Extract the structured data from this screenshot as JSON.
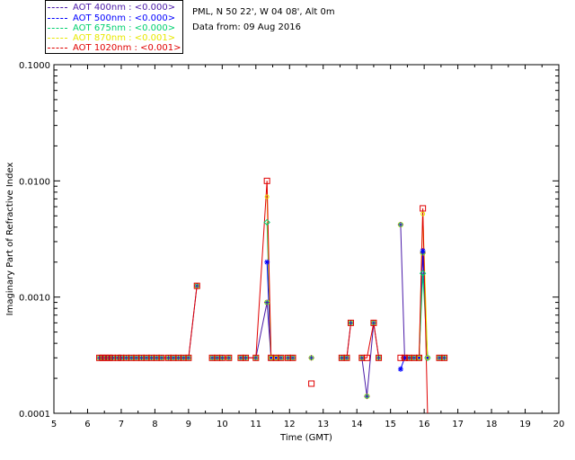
{
  "legend": [
    {
      "label": "AOT  400nm : <0.000>",
      "color": "#4a1aa8"
    },
    {
      "label": "AOT  500nm : <0.000>",
      "color": "#0000ff"
    },
    {
      "label": "AOT  675nm : <0.000>",
      "color": "#00d070"
    },
    {
      "label": "AOT  870nm : <0.001>",
      "color": "#e8e800"
    },
    {
      "label": "AOT 1020nm : <0.001>",
      "color": "#e00000"
    }
  ],
  "site_line": "PML, N 50 22', W 04 08', Alt 0m",
  "date_line": "Data from: 09 Aug 2016",
  "chart_data": {
    "type": "line",
    "ylabel": "Imaginary Part of Refractive Index",
    "xlabel": "Time (GMT)",
    "xlim": [
      5,
      20
    ],
    "ylim": [
      0.0001,
      0.1
    ],
    "yscale": "log",
    "xticks": [
      "5",
      "6",
      "7",
      "8",
      "9",
      "10",
      "11",
      "12",
      "13",
      "14",
      "15",
      "16",
      "17",
      "18",
      "19",
      "20"
    ],
    "yticks": [
      {
        "value": 0.0001,
        "label": "0.0001"
      },
      {
        "value": 0.001,
        "label": "0.0010"
      },
      {
        "value": 0.01,
        "label": "0.0100"
      },
      {
        "value": 0.1,
        "label": "0.1000"
      }
    ],
    "grid": false,
    "marker_colors": {
      "square": "#e00000",
      "cross": "#4a1aa8",
      "asterisk": "#0000ff",
      "diamond": "#00d070",
      "x": "#00d070",
      "circle": "#e8e800"
    },
    "series": [
      {
        "name": "AOT  400nm",
        "color": "#4a1aa8",
        "x": [
          6.35,
          6.45,
          6.55,
          6.65,
          6.75,
          6.9,
          7.0,
          7.15,
          7.3,
          7.45,
          7.6,
          7.75,
          7.9,
          8.05,
          8.2,
          8.4,
          8.55,
          8.7,
          8.85,
          9.0,
          9.25,
          null,
          9.7,
          9.85,
          10.0,
          10.2,
          null,
          10.55,
          10.7,
          11.0,
          11.33,
          11.45,
          11.6,
          11.75,
          null,
          11.95,
          12.1,
          null,
          12.65,
          null,
          13.55,
          13.7,
          13.82,
          null,
          14.15,
          14.3,
          14.5,
          14.65,
          null,
          15.3,
          15.42,
          15.55,
          15.7,
          15.85,
          15.96,
          16.1,
          null,
          16.45,
          16.6
        ],
        "y": [
          0.0003,
          0.0003,
          0.0003,
          0.0003,
          0.0003,
          0.0003,
          0.0003,
          0.0003,
          0.0003,
          0.0003,
          0.0003,
          0.0003,
          0.0003,
          0.0003,
          0.0003,
          0.0003,
          0.0003,
          0.0003,
          0.0003,
          0.0003,
          0.00125,
          null,
          0.0003,
          0.0003,
          0.0003,
          0.0003,
          null,
          0.0003,
          0.0003,
          0.0003,
          0.0009,
          0.0003,
          0.0003,
          0.0003,
          null,
          0.0003,
          0.0003,
          null,
          0.0003,
          null,
          0.0003,
          0.0003,
          0.0006,
          null,
          0.0003,
          0.00014,
          0.0006,
          0.0003,
          null,
          0.0042,
          0.0003,
          0.0003,
          0.0003,
          0.0003,
          0.0024,
          0.0003,
          null,
          0.0003,
          0.0003
        ]
      },
      {
        "name": "AOT  500nm",
        "color": "#0000ff",
        "x": [
          11.33,
          11.45,
          11.6,
          null,
          15.3,
          15.42,
          15.85,
          15.96,
          16.1
        ],
        "y": [
          0.002,
          0.0003,
          0.0003,
          null,
          0.00024,
          0.0003,
          0.0003,
          0.0025,
          0.0003
        ]
      },
      {
        "name": "AOT  675nm",
        "color": "#00d070",
        "x": [
          11.33,
          11.45,
          11.6,
          null,
          15.85,
          15.96,
          16.1
        ],
        "y": [
          0.0044,
          0.0003,
          0.0003,
          null,
          0.0003,
          0.0016,
          0.0003
        ]
      },
      {
        "name": "AOT  870nm",
        "color": "#e8e800",
        "x": [
          11.33,
          11.45,
          11.6,
          null,
          15.85,
          15.96,
          16.1
        ],
        "y": [
          0.0073,
          0.0003,
          0.0003,
          null,
          0.0003,
          0.0052,
          0.0003
        ]
      },
      {
        "name": "AOT 1020nm",
        "color": "#e00000",
        "x": [
          6.35,
          6.45,
          6.55,
          6.65,
          6.75,
          6.9,
          7.0,
          7.15,
          7.3,
          7.45,
          7.6,
          7.75,
          7.9,
          8.05,
          8.2,
          8.4,
          8.55,
          8.7,
          8.85,
          9.0,
          9.25,
          null,
          9.7,
          9.85,
          10.0,
          10.2,
          null,
          10.55,
          10.7,
          11.0,
          11.33,
          11.45,
          11.6,
          11.75,
          null,
          11.95,
          12.1,
          null,
          12.65,
          null,
          13.55,
          13.7,
          13.82,
          null,
          14.15,
          14.3,
          14.5,
          14.65,
          null,
          15.3,
          15.42,
          15.55,
          15.7,
          15.85,
          15.96,
          16.1,
          null,
          16.45,
          16.6
        ],
        "y": [
          0.0003,
          0.0003,
          0.0003,
          0.0003,
          0.0003,
          0.0003,
          0.0003,
          0.0003,
          0.0003,
          0.0003,
          0.0003,
          0.0003,
          0.0003,
          0.0003,
          0.0003,
          0.0003,
          0.0003,
          0.0003,
          0.0003,
          0.0003,
          0.00125,
          null,
          0.0003,
          0.0003,
          0.0003,
          0.0003,
          null,
          0.0003,
          0.0003,
          0.0003,
          0.01,
          0.0003,
          0.0003,
          0.0003,
          null,
          0.0003,
          0.0003,
          null,
          0.00018,
          null,
          0.0003,
          0.0003,
          0.0006,
          null,
          0.0003,
          0.0003,
          0.0006,
          0.0003,
          null,
          0.0003,
          0.0003,
          0.0003,
          0.0003,
          0.0003,
          0.0058,
          0.0001,
          null,
          0.0003,
          0.0003
        ]
      }
    ]
  }
}
